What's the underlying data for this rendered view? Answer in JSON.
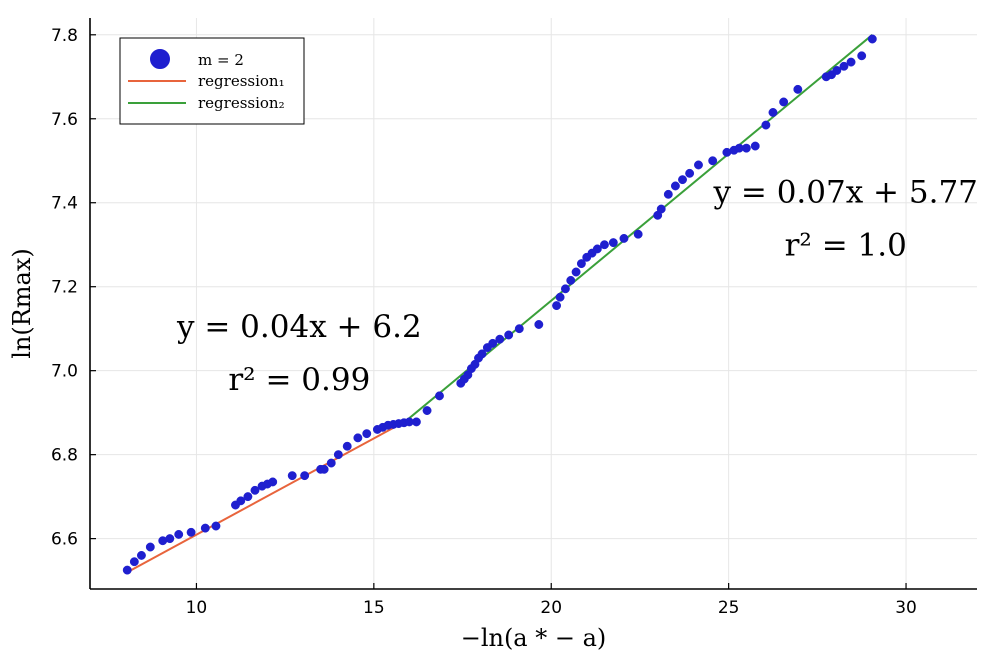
{
  "chart_data": {
    "type": "scatter",
    "xlabel": "−ln(a * − a)",
    "ylabel": "ln(Rmax)",
    "xlim": [
      7,
      32
    ],
    "ylim": [
      6.48,
      7.84
    ],
    "xticks": [
      10,
      15,
      20,
      25,
      30
    ],
    "yticks": [
      6.6,
      6.8,
      7.0,
      7.2,
      7.4,
      7.6,
      7.8
    ],
    "xtick_labels": [
      "10",
      "15",
      "20",
      "25",
      "30"
    ],
    "ytick_labels": [
      "6.6",
      "6.8",
      "7.0",
      "7.2",
      "7.4",
      "7.6",
      "7.8"
    ],
    "grid": true,
    "legend_position": "top-left",
    "colors": {
      "scatter": "#1f1fcf",
      "regression1": "#e8643c",
      "regression2": "#3aa03a"
    },
    "series": [
      {
        "name": "m = 2",
        "kind": "scatter",
        "points": [
          [
            8.05,
            6.525
          ],
          [
            8.25,
            6.545
          ],
          [
            8.45,
            6.56
          ],
          [
            8.7,
            6.58
          ],
          [
            9.05,
            6.595
          ],
          [
            9.25,
            6.6
          ],
          [
            9.5,
            6.61
          ],
          [
            9.85,
            6.615
          ],
          [
            10.25,
            6.625
          ],
          [
            10.55,
            6.63
          ],
          [
            11.1,
            6.68
          ],
          [
            11.25,
            6.69
          ],
          [
            11.45,
            6.7
          ],
          [
            11.65,
            6.715
          ],
          [
            11.85,
            6.725
          ],
          [
            12.0,
            6.73
          ],
          [
            12.15,
            6.735
          ],
          [
            12.7,
            6.75
          ],
          [
            13.05,
            6.75
          ],
          [
            13.5,
            6.765
          ],
          [
            13.6,
            6.765
          ],
          [
            13.8,
            6.78
          ],
          [
            14.0,
            6.8
          ],
          [
            14.25,
            6.82
          ],
          [
            14.55,
            6.84
          ],
          [
            14.8,
            6.85
          ],
          [
            15.1,
            6.86
          ],
          [
            15.25,
            6.865
          ],
          [
            15.4,
            6.87
          ],
          [
            15.55,
            6.872
          ],
          [
            15.7,
            6.874
          ],
          [
            15.85,
            6.876
          ],
          [
            16.0,
            6.878
          ],
          [
            16.2,
            6.878
          ],
          [
            16.5,
            6.905
          ],
          [
            16.85,
            6.94
          ],
          [
            17.45,
            6.97
          ],
          [
            17.55,
            6.98
          ],
          [
            17.65,
            6.99
          ],
          [
            17.75,
            7.005
          ],
          [
            17.85,
            7.015
          ],
          [
            17.95,
            7.03
          ],
          [
            18.05,
            7.04
          ],
          [
            18.2,
            7.055
          ],
          [
            18.35,
            7.065
          ],
          [
            18.55,
            7.075
          ],
          [
            18.8,
            7.085
          ],
          [
            19.1,
            7.1
          ],
          [
            19.65,
            7.11
          ],
          [
            20.15,
            7.155
          ],
          [
            20.25,
            7.175
          ],
          [
            20.4,
            7.195
          ],
          [
            20.55,
            7.215
          ],
          [
            20.7,
            7.235
          ],
          [
            20.85,
            7.255
          ],
          [
            21.0,
            7.27
          ],
          [
            21.15,
            7.28
          ],
          [
            21.3,
            7.29
          ],
          [
            21.5,
            7.3
          ],
          [
            21.75,
            7.305
          ],
          [
            22.05,
            7.315
          ],
          [
            22.45,
            7.325
          ],
          [
            23.0,
            7.37
          ],
          [
            23.1,
            7.385
          ],
          [
            23.3,
            7.42
          ],
          [
            23.5,
            7.44
          ],
          [
            23.7,
            7.455
          ],
          [
            23.9,
            7.47
          ],
          [
            24.15,
            7.49
          ],
          [
            24.55,
            7.5
          ],
          [
            24.95,
            7.52
          ],
          [
            25.15,
            7.525
          ],
          [
            25.3,
            7.53
          ],
          [
            25.5,
            7.53
          ],
          [
            25.75,
            7.535
          ],
          [
            26.05,
            7.585
          ],
          [
            26.25,
            7.615
          ],
          [
            26.55,
            7.64
          ],
          [
            26.95,
            7.67
          ],
          [
            27.75,
            7.7
          ],
          [
            27.9,
            7.705
          ],
          [
            28.05,
            7.715
          ],
          [
            28.25,
            7.725
          ],
          [
            28.45,
            7.735
          ],
          [
            28.75,
            7.75
          ],
          [
            29.05,
            7.79
          ]
        ]
      },
      {
        "name": "regression₁",
        "kind": "line",
        "points": [
          [
            8.05,
            6.52
          ],
          [
            15.9,
            6.88
          ]
        ]
      },
      {
        "name": "regression₂",
        "kind": "line",
        "points": [
          [
            15.9,
            6.88
          ],
          [
            29.05,
            7.8
          ]
        ]
      }
    ],
    "legend": {
      "scatter_label": "m = 2",
      "regression1_label": "regression₁",
      "regression2_label": "regression₂"
    },
    "annotations": [
      {
        "line1": "y = 0.04x + 6.2",
        "line2": "r² = 0.99",
        "x": 12.9,
        "y": 7.08
      },
      {
        "line1": "y = 0.07x + 5.77",
        "line2": "r² = 1.0",
        "x": 28.3,
        "y": 7.4
      }
    ]
  }
}
